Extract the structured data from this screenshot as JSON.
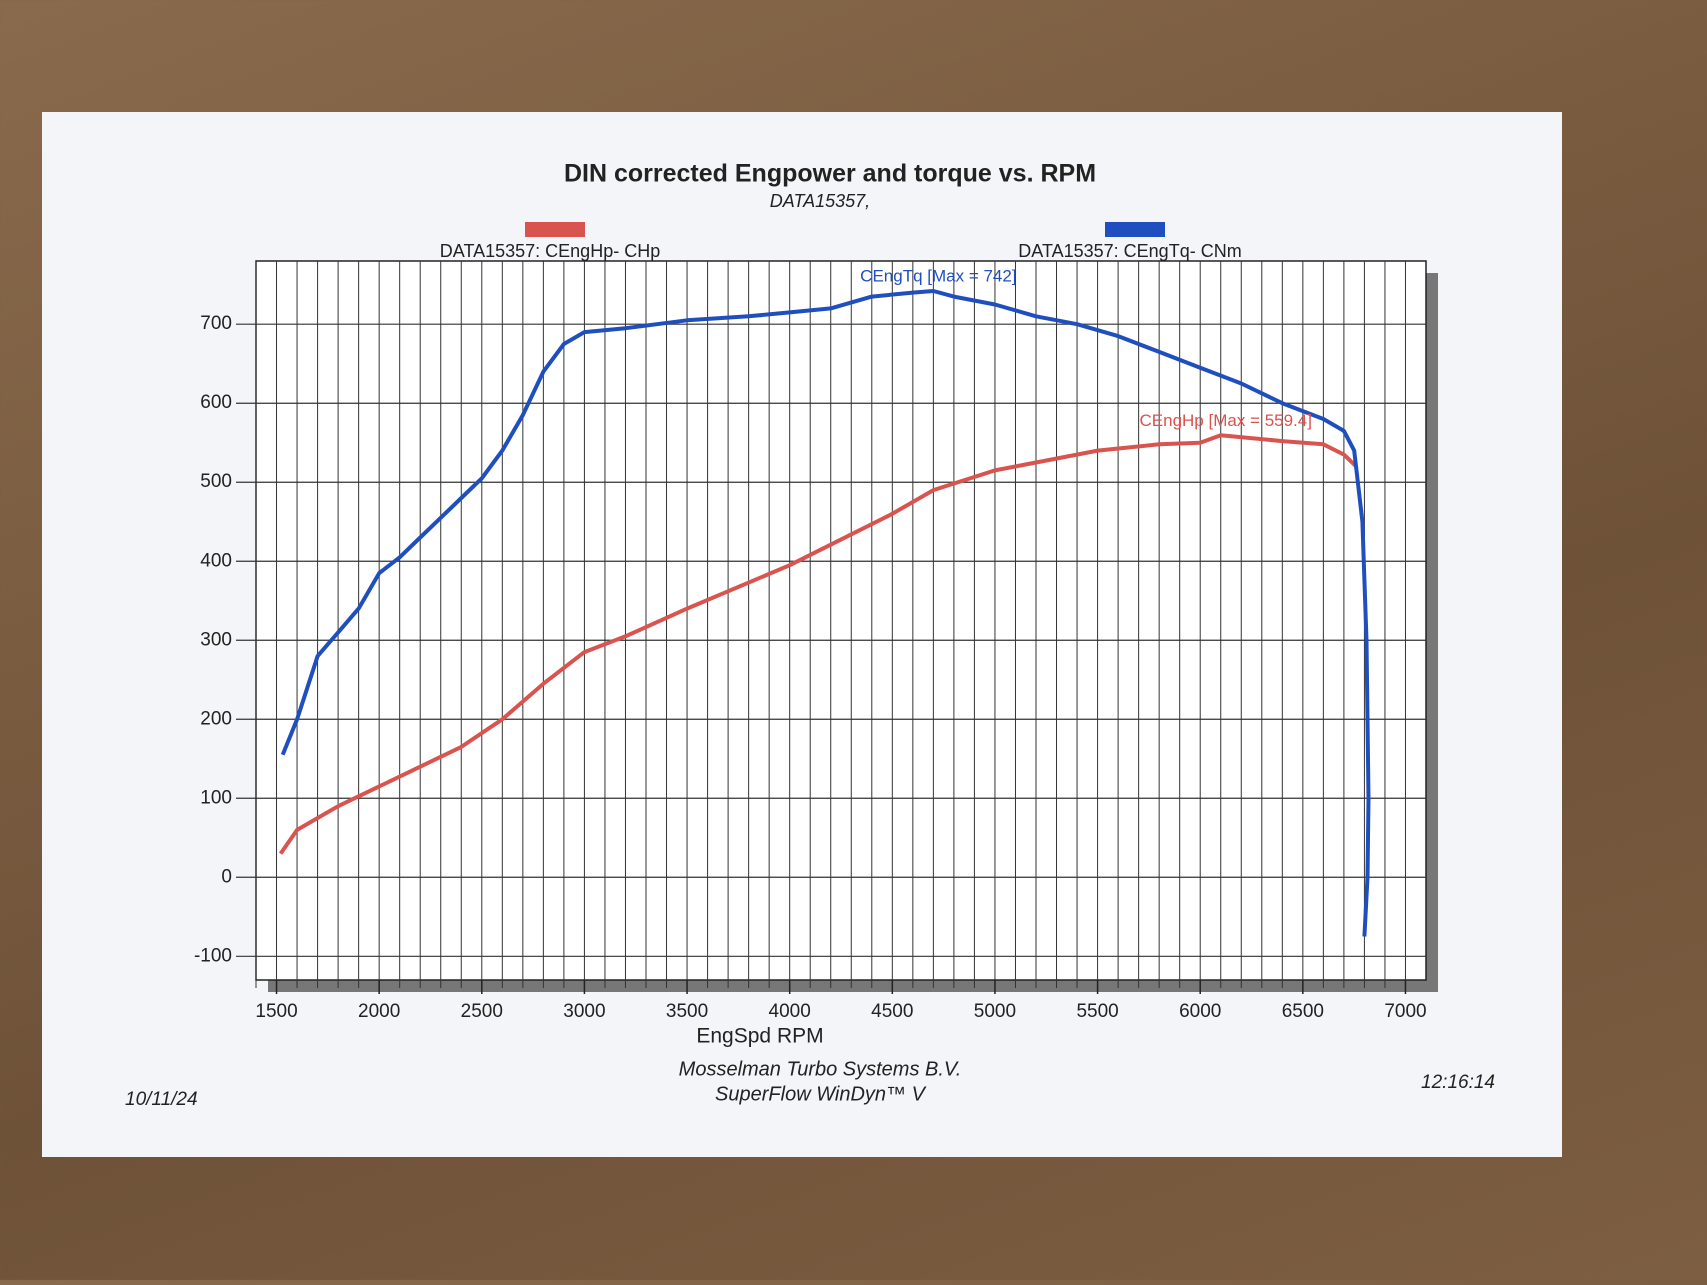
{
  "chart_data": {
    "type": "line",
    "title": "DIN corrected Engpower and torque vs. RPM",
    "subtitle": "DATA15357,",
    "x_label": "EngSpd  RPM",
    "xlim": [
      1400,
      7100
    ],
    "xticks": [
      1500,
      2000,
      2500,
      3000,
      3500,
      4000,
      4500,
      5000,
      5500,
      6000,
      6500,
      7000
    ],
    "x_minor_ticks": [
      1400,
      1500,
      1600,
      1700,
      1800,
      1900,
      2000,
      2100,
      2200,
      2300,
      2400,
      2500,
      2600,
      2700,
      2800,
      2900,
      3000,
      3100,
      3200,
      3300,
      3400,
      3500,
      3600,
      3700,
      3800,
      3900,
      4000,
      4100,
      4200,
      4300,
      4400,
      4500,
      4600,
      4700,
      4800,
      4900,
      5000,
      5100,
      5200,
      5300,
      5400,
      5500,
      5600,
      5700,
      5800,
      5900,
      6000,
      6100,
      6200,
      6300,
      6400,
      6500,
      6600,
      6700,
      6800,
      6900,
      7000
    ],
    "ylim": [
      -130,
      780
    ],
    "yticks": [
      -100,
      0,
      100,
      200,
      300,
      400,
      500,
      600,
      700
    ],
    "grid": true,
    "series": [
      {
        "name": "DATA15357: CEngHp-  CHp",
        "color": "#d9534f",
        "x": [
          1520,
          1600,
          1800,
          2000,
          2200,
          2400,
          2600,
          2800,
          3000,
          3200,
          3500,
          4000,
          4500,
          4700,
          5000,
          5200,
          5500,
          5800,
          6000,
          6100,
          6400,
          6600,
          6700,
          6760
        ],
        "values": [
          30,
          60,
          90,
          115,
          140,
          165,
          200,
          245,
          285,
          305,
          340,
          395,
          460,
          490,
          515,
          525,
          540,
          548,
          550,
          559.4,
          552,
          548,
          535,
          520
        ]
      },
      {
        "name": "DATA15357: CEngTq-  CNm",
        "color": "#1f4fbf",
        "x": [
          1530,
          1600,
          1700,
          1800,
          1900,
          2000,
          2100,
          2200,
          2300,
          2400,
          2500,
          2600,
          2700,
          2800,
          2900,
          3000,
          3200,
          3500,
          3800,
          4000,
          4200,
          4400,
          4600,
          4700,
          4800,
          5000,
          5200,
          5400,
          5600,
          5800,
          6000,
          6200,
          6400,
          6600,
          6700,
          6750,
          6790,
          6810,
          6820,
          6815,
          6800
        ],
        "values": [
          155,
          200,
          280,
          310,
          340,
          385,
          405,
          430,
          455,
          480,
          505,
          540,
          585,
          640,
          675,
          690,
          695,
          705,
          710,
          715,
          720,
          735,
          740,
          742,
          735,
          725,
          710,
          700,
          685,
          665,
          645,
          625,
          600,
          580,
          565,
          540,
          450,
          300,
          100,
          0,
          -75
        ]
      }
    ],
    "annotations": [
      "CEngHp [Max = 559.4]",
      "CEngTq [Max = 742]"
    ],
    "footer_lines": [
      "Mosselman Turbo Systems B.V.",
      "SuperFlow WinDyn™ V"
    ],
    "date": "10/11/24",
    "time": "12:16:14"
  }
}
